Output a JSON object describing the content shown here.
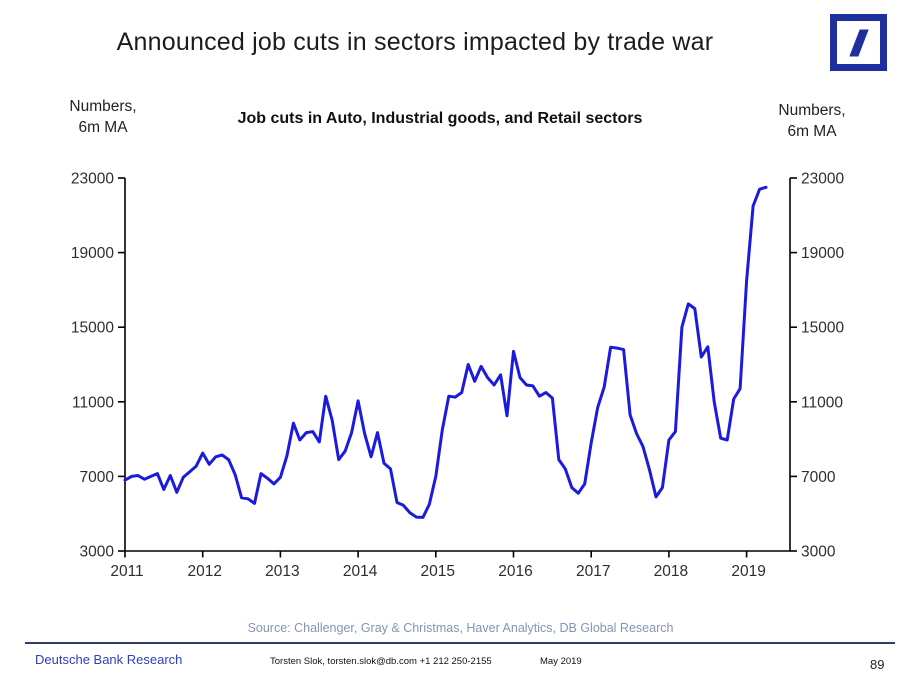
{
  "header": {
    "title": "Announced job cuts in sectors impacted by trade war"
  },
  "chart": {
    "subtitle": "Job cuts in Auto, Industrial goods, and Retail sectors",
    "left_axis_unit": [
      "Numbers,",
      "6m MA"
    ],
    "right_axis_unit": [
      "Numbers,",
      "6m MA"
    ],
    "y_ticks": [
      3000,
      7000,
      11000,
      15000,
      19000,
      23000
    ],
    "x_ticks": [
      "2011",
      "2012",
      "2013",
      "2014",
      "2015",
      "2016",
      "2017",
      "2018",
      "2019"
    ],
    "line_color": "#1b1be0",
    "axis_color": "#000000",
    "tick_label_color": "#2e2e2e"
  },
  "chart_data": {
    "type": "line",
    "title": "Job cuts in Auto, Industrial goods, and Retail sectors",
    "ylabel": "Numbers, 6m MA",
    "ylim": [
      3000,
      23000
    ],
    "x_range": [
      "2011-01",
      "2019-04"
    ],
    "grid": false,
    "legend": "none",
    "series": [
      {
        "name": "Job cuts in Auto, Industrial goods and Retail sectors (6m MA)",
        "frequency": "monthly",
        "start": "2011-01",
        "values": [
          6800,
          7000,
          7050,
          6850,
          7000,
          7150,
          6300,
          7050,
          6150,
          6950,
          7250,
          7550,
          8250,
          7650,
          8050,
          8150,
          7900,
          7100,
          5850,
          5800,
          5550,
          7150,
          6900,
          6600,
          6950,
          8100,
          9850,
          8950,
          9350,
          9400,
          8850,
          11300,
          10000,
          7900,
          8350,
          9350,
          11050,
          9300,
          8050,
          9350,
          7700,
          7400,
          5600,
          5450,
          5050,
          4820,
          4800,
          5500,
          7000,
          9500,
          11300,
          11250,
          11500,
          13000,
          12100,
          12900,
          12300,
          11900,
          12450,
          10250,
          13700,
          12300,
          11900,
          11850,
          11300,
          11500,
          11200,
          7900,
          7400,
          6400,
          6100,
          6600,
          8800,
          10700,
          11800,
          13930,
          13880,
          13800,
          10300,
          9300,
          8600,
          7350,
          5900,
          6400,
          8950,
          9400,
          15000,
          16250,
          16000,
          13400,
          13950,
          11000,
          9050,
          8950,
          11150,
          11700,
          17500,
          21500,
          22400,
          22500
        ]
      }
    ]
  },
  "footer": {
    "source": "Source: Challenger, Gray & Christmas, Haver Analytics, DB Global Research",
    "brand": "Deutsche Bank Research",
    "contact": "Torsten Slok, torsten.slok@db.com  +1 212 250-2155",
    "date": "May 2019",
    "page_number": "89"
  }
}
